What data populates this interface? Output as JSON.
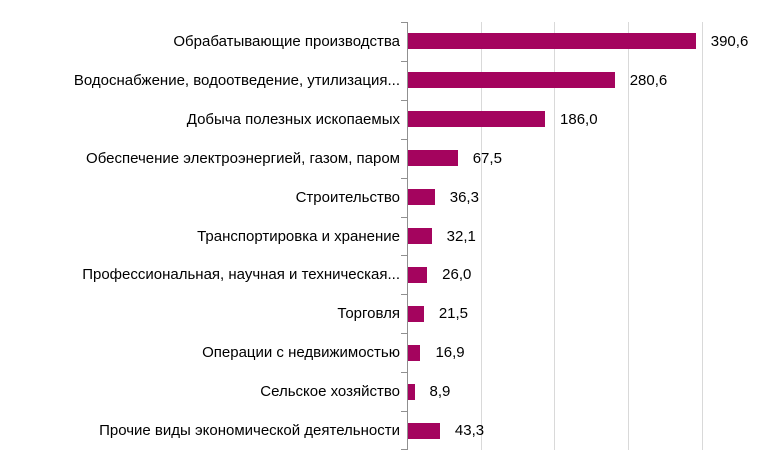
{
  "chart_data": {
    "type": "bar",
    "orientation": "horizontal",
    "title": "",
    "xlabel": "",
    "ylabel": "",
    "legend_position": "none",
    "grid": "vertical",
    "xlim": [
      0,
      479
    ],
    "gridlines_x": [
      100,
      200,
      300,
      400
    ],
    "categories": [
      "Обрабатывающие производства",
      "Водоснабжение, водоотведение, утилизация...",
      "Добыча полезных ископаемых",
      "Обеспечение электроэнергией, газом, паром",
      "Строительство",
      "Транспортировка и хранение",
      "Профессиональная, научная и техническая...",
      "Торговля",
      "Операции с недвижимостью",
      "Сельское хозяйство",
      "Прочие виды экономической деятельности"
    ],
    "values": [
      390.6,
      280.6,
      186.0,
      67.5,
      36.3,
      32.1,
      26.0,
      21.5,
      16.9,
      8.9,
      43.3
    ],
    "value_labels": [
      "390,6",
      "280,6",
      "186,0",
      "67,5",
      "36,3",
      "32,1",
      "26,0",
      "21,5",
      "16,9",
      "8,9",
      "43,3"
    ],
    "colors": {
      "bar": "#A4045E",
      "axis": "#909090",
      "gridline": "#D9D9D9",
      "text": "#000000",
      "background": "#FFFFFF"
    }
  }
}
